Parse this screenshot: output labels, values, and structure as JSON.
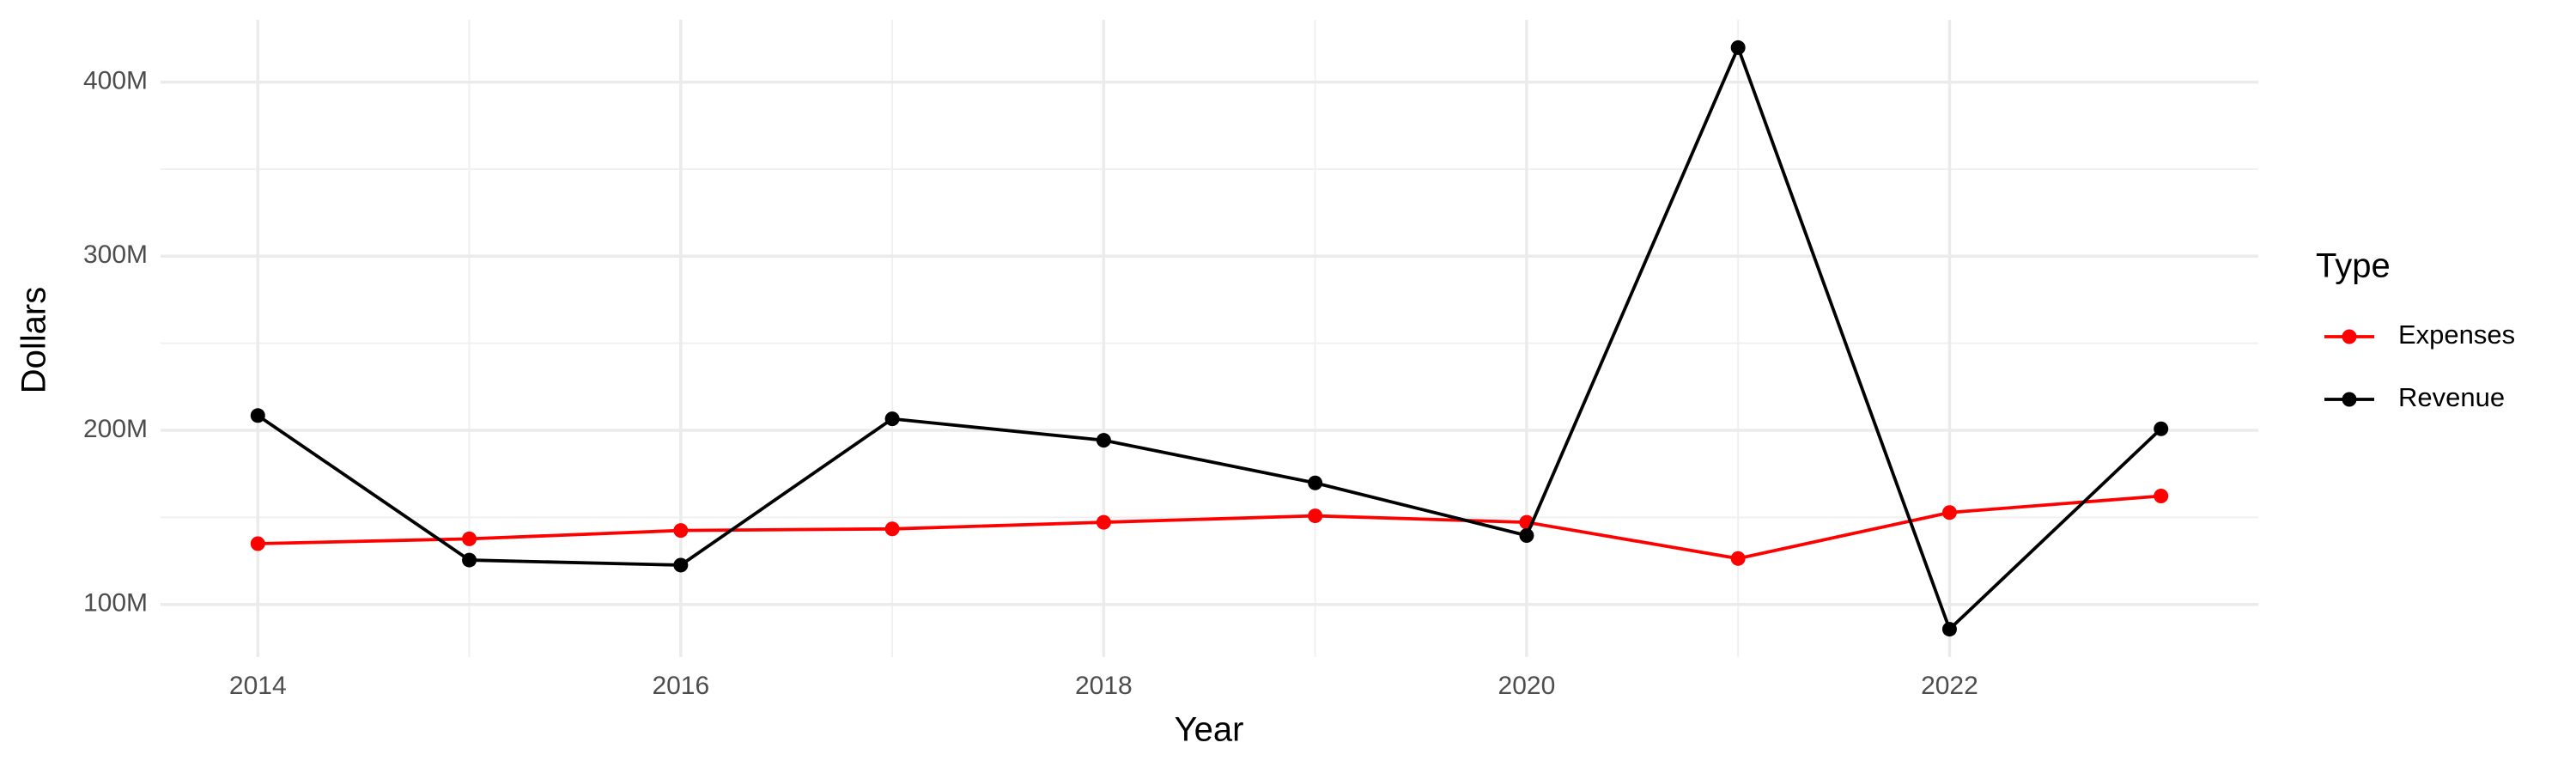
{
  "chart_data": {
    "type": "line",
    "x_label": "Year",
    "y_label": "Dollars",
    "legend_title": "Type",
    "legend_position": "right",
    "grid": true,
    "x": [
      2014,
      2015,
      2016,
      2017,
      2018,
      2019,
      2020,
      2021,
      2022,
      2023
    ],
    "series": [
      {
        "name": "Expenses",
        "color": "#ff0000",
        "values": [
          134900000,
          137700000,
          142500000,
          143400000,
          147200000,
          150900000,
          147200000,
          126400000,
          152800000,
          162300000
        ]
      },
      {
        "name": "Revenue",
        "color": "#000000",
        "values": [
          208500000,
          125500000,
          122600000,
          206600000,
          194300000,
          169800000,
          139600000,
          419800000,
          85800000,
          200900000
        ]
      }
    ],
    "xlim": [
      2013.54,
      2023.46
    ],
    "xticks": [
      2014,
      2016,
      2018,
      2020,
      2022
    ],
    "ylim": [
      69800000,
      435800000
    ],
    "yticks": [
      {
        "value": 100000000,
        "label": "100M"
      },
      {
        "value": 200000000,
        "label": "200M"
      },
      {
        "value": 300000000,
        "label": "300M"
      },
      {
        "value": 400000000,
        "label": "400M"
      }
    ]
  }
}
